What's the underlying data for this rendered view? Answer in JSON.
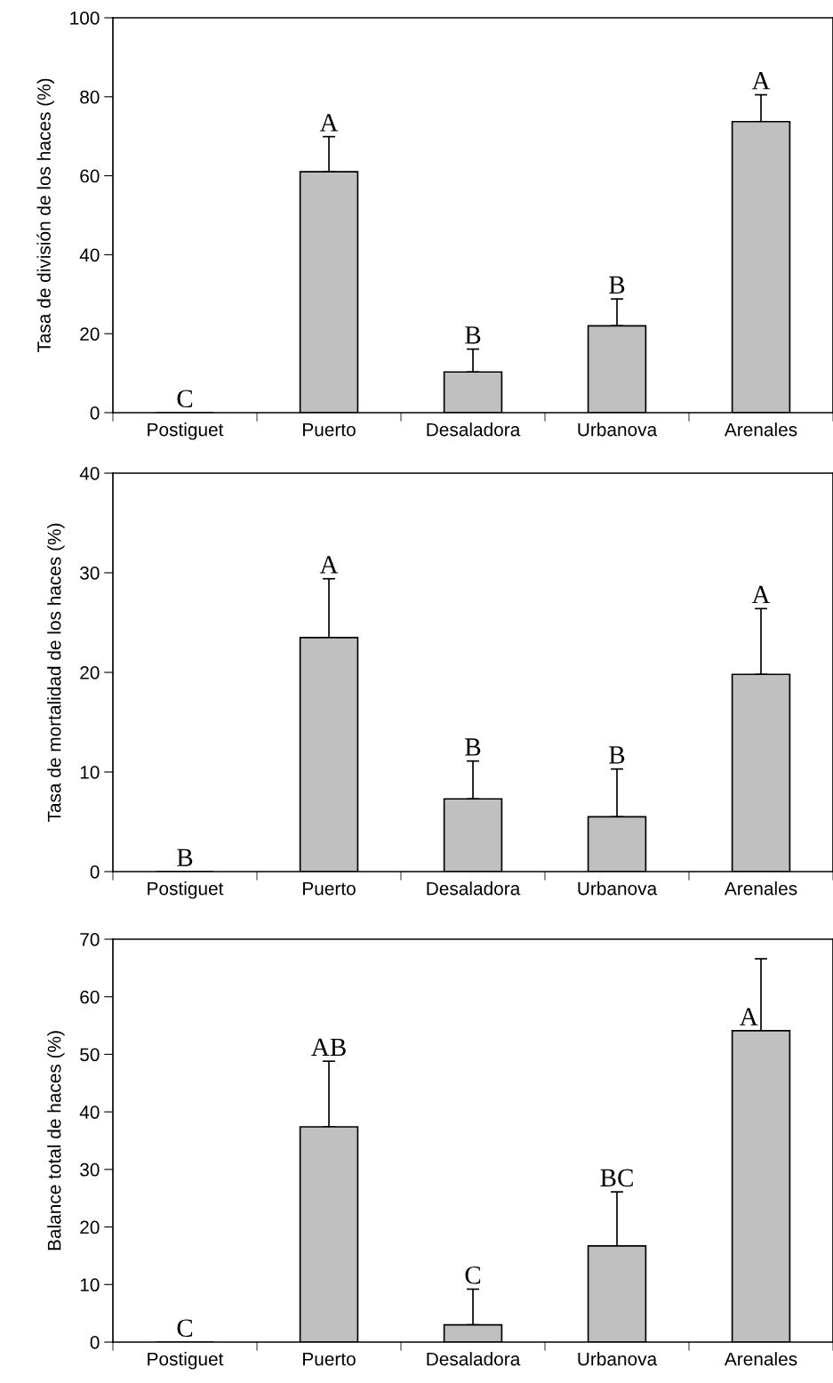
{
  "chart_data": [
    {
      "type": "bar",
      "ylabel": "Tasa de división de los haces (%)",
      "categories": [
        "Postiguet",
        "Puerto",
        "Desaladora",
        "Urbanova",
        "Arenales"
      ],
      "values": [
        0,
        61.0,
        10.3,
        22.0,
        73.7
      ],
      "errors": [
        null,
        [
          61.0,
          69.9
        ],
        [
          10.3,
          16.1
        ],
        [
          22.0,
          28.8
        ],
        [
          73.7,
          80.5
        ]
      ],
      "color": "#c0c0c0",
      "ylim": [
        0,
        100
      ],
      "yticks": [
        0,
        20,
        40,
        60,
        80,
        100
      ],
      "grid": false,
      "legend": false,
      "annotations": [
        {
          "text": "C",
          "x": "Postiguet",
          "y": 0
        },
        {
          "text": "A",
          "x": "Puerto",
          "y": 61.0
        },
        {
          "text": "B",
          "x": "Desaladora",
          "y": 10.3
        },
        {
          "text": "B",
          "x": "Urbanova",
          "y": 22.0
        },
        {
          "text": "A",
          "x": "Arenales",
          "y": 73.7
        }
      ]
    },
    {
      "type": "bar",
      "ylabel": "Tasa de mortalidad de los haces (%)",
      "categories": [
        "Postiguet",
        "Puerto",
        "Desaladora",
        "Urbanova",
        "Arenales"
      ],
      "values": [
        0,
        23.5,
        7.3,
        5.5,
        19.8
      ],
      "errors": [
        null,
        [
          23.5,
          29.4
        ],
        [
          7.3,
          11.1
        ],
        [
          5.5,
          10.3
        ],
        [
          19.8,
          26.4
        ]
      ],
      "color": "#c0c0c0",
      "ylim": [
        0,
        40
      ],
      "yticks": [
        0,
        10,
        20,
        30,
        40
      ],
      "grid": false,
      "legend": false,
      "annotations": [
        {
          "text": "B",
          "x": "Postiguet",
          "y": 0
        },
        {
          "text": "A",
          "x": "Puerto",
          "y": 23.5
        },
        {
          "text": "B",
          "x": "Desaladora",
          "y": 7.3
        },
        {
          "text": "B",
          "x": "Urbanova",
          "y": 5.5
        },
        {
          "text": "A",
          "x": "Arenales",
          "y": 19.8
        }
      ]
    },
    {
      "type": "bar",
      "ylabel": "Balance total de haces (%)",
      "categories": [
        "Postiguet",
        "Puerto",
        "Desaladora",
        "Urbanova",
        "Arenales"
      ],
      "values": [
        0,
        37.4,
        3.0,
        16.7,
        54.1
      ],
      "errors": [
        null,
        [
          37.4,
          48.8
        ],
        [
          3.0,
          9.2
        ],
        [
          16.7,
          26.1
        ],
        [
          54.1,
          66.6
        ]
      ],
      "color": "#c0c0c0",
      "ylim": [
        0,
        70
      ],
      "yticks": [
        0,
        10,
        20,
        30,
        40,
        50,
        60,
        70
      ],
      "grid": false,
      "legend": false,
      "annotations": [
        {
          "text": "C",
          "x": "Postiguet",
          "y": 0
        },
        {
          "text": "AB",
          "x": "Puerto",
          "y": 37.4
        },
        {
          "text": "C",
          "x": "Desaladora",
          "y": 3.0
        },
        {
          "text": "BC",
          "x": "Urbanova",
          "y": 16.7
        },
        {
          "text": "A",
          "x": "Arenales",
          "y": 54.1
        }
      ]
    }
  ]
}
